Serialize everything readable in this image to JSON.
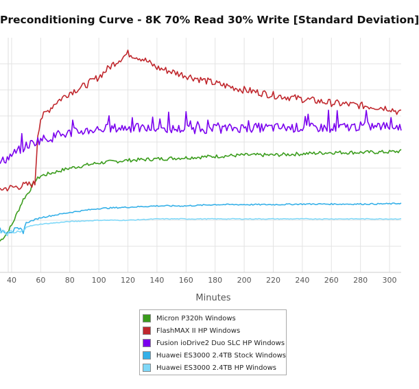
{
  "chart_data": {
    "type": "line",
    "title": "Preconditioning Curve - 8K 70% Read 30% Write [Standard Deviation]",
    "xlabel": "Minutes",
    "ylabel": "",
    "xlim": [
      32,
      308
    ],
    "ylim": [
      0,
      9
    ],
    "x_ticks": [
      40,
      60,
      80,
      100,
      120,
      140,
      160,
      180,
      200,
      220,
      240,
      260,
      280,
      300
    ],
    "grid": true,
    "legend_position": "bottom",
    "series": [
      {
        "name": "Micron P320h Windows",
        "color": "#3a9c1c",
        "x": [
          32,
          36,
          40,
          44,
          48,
          52,
          56,
          60,
          70,
          80,
          100,
          120,
          140,
          160,
          180,
          200,
          220,
          240,
          260,
          280,
          300,
          308
        ],
        "y": [
          1.2,
          1.45,
          1.8,
          2.3,
          2.8,
          3.1,
          3.5,
          3.7,
          3.85,
          4.0,
          4.2,
          4.3,
          4.35,
          4.4,
          4.45,
          4.5,
          4.5,
          4.55,
          4.6,
          4.6,
          4.62,
          4.65
        ]
      },
      {
        "name": "FlashMAX II HP Windows",
        "color": "#c0272d",
        "x": [
          32,
          40,
          50,
          56,
          58,
          60,
          70,
          80,
          90,
          100,
          110,
          120,
          130,
          140,
          160,
          180,
          200,
          220,
          240,
          260,
          280,
          300,
          308
        ],
        "y": [
          3.2,
          3.25,
          3.35,
          3.4,
          5.3,
          5.9,
          6.5,
          6.9,
          7.15,
          7.5,
          8.0,
          8.4,
          8.2,
          7.85,
          7.55,
          7.25,
          7.0,
          6.8,
          6.65,
          6.5,
          6.4,
          6.3,
          6.1
        ]
      },
      {
        "name": "Fusion ioDrive2 Duo SLC HP Windows",
        "color": "#7a00ee",
        "x": [
          32,
          40,
          50,
          60,
          70,
          80,
          100,
          120,
          140,
          160,
          180,
          200,
          220,
          240,
          260,
          280,
          300,
          308
        ],
        "y": [
          4.2,
          4.5,
          4.85,
          5.1,
          5.2,
          5.35,
          5.5,
          5.55,
          5.5,
          5.5,
          5.5,
          5.55,
          5.55,
          5.55,
          5.55,
          5.6,
          5.6,
          5.6
        ]
      },
      {
        "name": "Huawei ES3000 2.4TB Stock Windows",
        "color": "#35b0e8",
        "x": [
          32,
          40,
          48,
          50,
          60,
          70,
          80,
          100,
          120,
          140,
          160,
          180,
          200,
          220,
          240,
          260,
          280,
          300,
          308
        ],
        "y": [
          1.6,
          1.6,
          1.6,
          1.9,
          2.1,
          2.2,
          2.3,
          2.45,
          2.5,
          2.55,
          2.55,
          2.6,
          2.6,
          2.6,
          2.62,
          2.62,
          2.62,
          2.63,
          2.65
        ]
      },
      {
        "name": "Huawei ES3000 2.4TB HP Windows",
        "color": "#7fd8f8",
        "x": [
          32,
          40,
          48,
          50,
          60,
          70,
          80,
          100,
          120,
          140,
          160,
          180,
          200,
          220,
          240,
          260,
          280,
          300,
          308
        ],
        "y": [
          1.5,
          1.5,
          1.55,
          1.75,
          1.85,
          1.9,
          1.95,
          2.0,
          2.0,
          2.05,
          2.05,
          2.05,
          2.05,
          2.05,
          2.05,
          2.05,
          2.05,
          2.05,
          2.05
        ]
      }
    ]
  }
}
